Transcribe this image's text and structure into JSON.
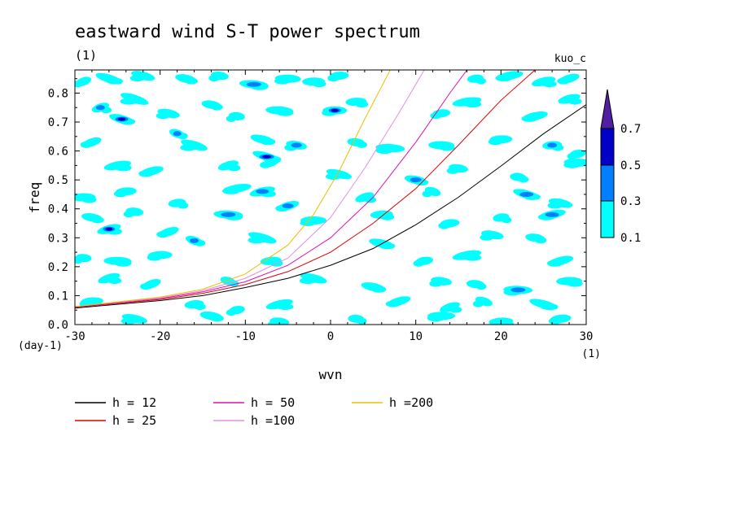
{
  "chart_data": {
    "type": "heatmap",
    "title": "eastward wind S-T power spectrum",
    "subtitle_left": "(1)",
    "subtitle_right": "kuo_c",
    "xlabel": "wvn",
    "ylabel": "freq",
    "x_unit": "(1)",
    "y_unit": "(day-1)",
    "xlim": [
      -30,
      30
    ],
    "ylim": [
      0,
      0.88
    ],
    "x_ticks": [
      -30,
      -20,
      -10,
      0,
      10,
      20,
      30
    ],
    "x_tick_labels": [
      "-30",
      "-20",
      "-10",
      "0",
      "10",
      "20",
      "30"
    ],
    "y_ticks": [
      0,
      0.1,
      0.2,
      0.3,
      0.4,
      0.5,
      0.6,
      0.7,
      0.8
    ],
    "y_tick_labels": [
      "0.0",
      "0.1",
      "0.2",
      "0.3",
      "0.4",
      "0.5",
      "0.6",
      "0.7",
      "0.8"
    ],
    "colorbar": {
      "levels": [
        0.1,
        0.3,
        0.5,
        0.7
      ],
      "labels": [
        "0.1",
        "0.3",
        "0.5",
        "0.7"
      ],
      "colors": [
        "#00ffff",
        "#0080ff",
        "#0000c8",
        "#5020a0"
      ]
    },
    "patches": [
      {
        "x": -29,
        "y": 0.84,
        "level": 0
      },
      {
        "x": -26,
        "y": 0.85,
        "level": 0
      },
      {
        "x": -22,
        "y": 0.86,
        "level": 0
      },
      {
        "x": -17,
        "y": 0.85,
        "level": 0
      },
      {
        "x": -13,
        "y": 0.86,
        "level": 0
      },
      {
        "x": -9,
        "y": 0.83,
        "level": 1
      },
      {
        "x": -5,
        "y": 0.85,
        "level": 0
      },
      {
        "x": -2,
        "y": 0.84,
        "level": 0
      },
      {
        "x": 1,
        "y": 0.86,
        "level": 0
      },
      {
        "x": 17,
        "y": 0.85,
        "level": 0
      },
      {
        "x": 21,
        "y": 0.86,
        "level": 0
      },
      {
        "x": 25,
        "y": 0.84,
        "level": 0
      },
      {
        "x": 28,
        "y": 0.85,
        "level": 0
      },
      {
        "x": -27,
        "y": 0.75,
        "level": 1
      },
      {
        "x": -23,
        "y": 0.78,
        "level": 0
      },
      {
        "x": -24.5,
        "y": 0.71,
        "level": 2
      },
      {
        "x": -19,
        "y": 0.73,
        "level": 0
      },
      {
        "x": -14,
        "y": 0.76,
        "level": 0
      },
      {
        "x": -11,
        "y": 0.72,
        "level": 0
      },
      {
        "x": -6,
        "y": 0.74,
        "level": 0
      },
      {
        "x": 0.5,
        "y": 0.74,
        "level": 2
      },
      {
        "x": 3,
        "y": 0.77,
        "level": 0
      },
      {
        "x": 13,
        "y": 0.73,
        "level": 0
      },
      {
        "x": 16,
        "y": 0.77,
        "level": 0
      },
      {
        "x": 24,
        "y": 0.72,
        "level": 0
      },
      {
        "x": 28,
        "y": 0.78,
        "level": 0
      },
      {
        "x": -28,
        "y": 0.63,
        "level": 0
      },
      {
        "x": -18,
        "y": 0.66,
        "level": 1
      },
      {
        "x": -16,
        "y": 0.62,
        "level": 0
      },
      {
        "x": -8,
        "y": 0.64,
        "level": 0
      },
      {
        "x": -4,
        "y": 0.62,
        "level": 1
      },
      {
        "x": 3,
        "y": 0.63,
        "level": 0
      },
      {
        "x": 7,
        "y": 0.61,
        "level": 0
      },
      {
        "x": 13,
        "y": 0.62,
        "level": 0
      },
      {
        "x": 20,
        "y": 0.64,
        "level": 0
      },
      {
        "x": 26,
        "y": 0.62,
        "level": 1
      },
      {
        "x": 29,
        "y": 0.59,
        "level": 0
      },
      {
        "x": -25,
        "y": 0.55,
        "level": 0
      },
      {
        "x": -21,
        "y": 0.53,
        "level": 0
      },
      {
        "x": -12,
        "y": 0.55,
        "level": 0
      },
      {
        "x": -7,
        "y": 0.56,
        "level": 0
      },
      {
        "x": -7.5,
        "y": 0.58,
        "level": 2
      },
      {
        "x": 1,
        "y": 0.52,
        "level": 0
      },
      {
        "x": 10,
        "y": 0.5,
        "level": 1
      },
      {
        "x": 15,
        "y": 0.54,
        "level": 0
      },
      {
        "x": 22,
        "y": 0.51,
        "level": 0
      },
      {
        "x": 29,
        "y": 0.56,
        "level": 0
      },
      {
        "x": -29,
        "y": 0.44,
        "level": 0
      },
      {
        "x": -24,
        "y": 0.46,
        "level": 0
      },
      {
        "x": -18,
        "y": 0.42,
        "level": 0
      },
      {
        "x": -11,
        "y": 0.47,
        "level": 0
      },
      {
        "x": -8,
        "y": 0.46,
        "level": 1
      },
      {
        "x": -5,
        "y": 0.41,
        "level": 1
      },
      {
        "x": 4,
        "y": 0.44,
        "level": 0
      },
      {
        "x": 12,
        "y": 0.46,
        "level": 0
      },
      {
        "x": 23,
        "y": 0.45,
        "level": 1
      },
      {
        "x": 27,
        "y": 0.42,
        "level": 0
      },
      {
        "x": -28,
        "y": 0.37,
        "level": 0
      },
      {
        "x": -23,
        "y": 0.39,
        "level": 0
      },
      {
        "x": -12,
        "y": 0.38,
        "level": 1
      },
      {
        "x": -2,
        "y": 0.36,
        "level": 0
      },
      {
        "x": 6,
        "y": 0.38,
        "level": 0
      },
      {
        "x": 14,
        "y": 0.35,
        "level": 0
      },
      {
        "x": 20,
        "y": 0.37,
        "level": 0
      },
      {
        "x": 26,
        "y": 0.38,
        "level": 1
      },
      {
        "x": -26,
        "y": 0.33,
        "level": 2
      },
      {
        "x": -19,
        "y": 0.32,
        "level": 0
      },
      {
        "x": -16,
        "y": 0.29,
        "level": 1
      },
      {
        "x": -8,
        "y": 0.3,
        "level": 0
      },
      {
        "x": 6,
        "y": 0.28,
        "level": 0
      },
      {
        "x": 19,
        "y": 0.31,
        "level": 0
      },
      {
        "x": 24,
        "y": 0.3,
        "level": 0
      },
      {
        "x": -29,
        "y": 0.23,
        "level": 0
      },
      {
        "x": -25,
        "y": 0.22,
        "level": 0
      },
      {
        "x": -20,
        "y": 0.24,
        "level": 0
      },
      {
        "x": -7,
        "y": 0.22,
        "level": 0
      },
      {
        "x": 11,
        "y": 0.22,
        "level": 0
      },
      {
        "x": 16,
        "y": 0.24,
        "level": 0
      },
      {
        "x": 27,
        "y": 0.22,
        "level": 0
      },
      {
        "x": -26,
        "y": 0.16,
        "level": 0
      },
      {
        "x": -21,
        "y": 0.14,
        "level": 0
      },
      {
        "x": -12,
        "y": 0.15,
        "level": 0
      },
      {
        "x": -2,
        "y": 0.16,
        "level": 0
      },
      {
        "x": 5,
        "y": 0.13,
        "level": 0
      },
      {
        "x": 13,
        "y": 0.15,
        "level": 0
      },
      {
        "x": 17,
        "y": 0.14,
        "level": 0
      },
      {
        "x": 22,
        "y": 0.12,
        "level": 1
      },
      {
        "x": 28,
        "y": 0.15,
        "level": 0
      },
      {
        "x": -28,
        "y": 0.08,
        "level": 0
      },
      {
        "x": -16,
        "y": 0.07,
        "level": 0
      },
      {
        "x": -11,
        "y": 0.05,
        "level": 0
      },
      {
        "x": -6,
        "y": 0.07,
        "level": 0
      },
      {
        "x": 8,
        "y": 0.08,
        "level": 0
      },
      {
        "x": 14,
        "y": 0.06,
        "level": 0
      },
      {
        "x": 18,
        "y": 0.08,
        "level": 0
      },
      {
        "x": 25,
        "y": 0.07,
        "level": 0
      },
      {
        "x": -23,
        "y": 0.02,
        "level": 0
      },
      {
        "x": -14,
        "y": 0.03,
        "level": 0
      },
      {
        "x": -6,
        "y": 0.01,
        "level": 0
      },
      {
        "x": 3,
        "y": 0.02,
        "level": 0
      },
      {
        "x": 13,
        "y": 0.03,
        "level": 0
      },
      {
        "x": 20,
        "y": 0.01,
        "level": 0
      },
      {
        "x": 27,
        "y": 0.02,
        "level": 0
      }
    ],
    "series": [
      {
        "name": "h = 12",
        "color": "#000000",
        "x": [
          -30,
          -20,
          -15,
          -10,
          -5,
          0,
          5,
          10,
          15,
          20,
          25,
          30
        ],
        "y": [
          0.057,
          0.083,
          0.1,
          0.128,
          0.16,
          0.205,
          0.263,
          0.345,
          0.44,
          0.548,
          0.66,
          0.76
        ]
      },
      {
        "name": "h = 25",
        "color": "#e00000",
        "x": [
          -30,
          -20,
          -15,
          -10,
          -5,
          0,
          5,
          10,
          15,
          20,
          24
        ],
        "y": [
          0.06,
          0.087,
          0.108,
          0.138,
          0.183,
          0.25,
          0.35,
          0.47,
          0.62,
          0.775,
          0.88
        ]
      },
      {
        "name": "h = 50",
        "color": "#e010b0",
        "x": [
          -30,
          -20,
          -15,
          -10,
          -5,
          0,
          5,
          10,
          14,
          16
        ],
        "y": [
          0.061,
          0.09,
          0.113,
          0.148,
          0.205,
          0.3,
          0.44,
          0.63,
          0.8,
          0.88
        ]
      },
      {
        "name": "h =100",
        "color": "#e090e0",
        "x": [
          -30,
          -20,
          -15,
          -10,
          -5,
          0,
          4,
          8,
          11
        ],
        "y": [
          0.062,
          0.092,
          0.117,
          0.16,
          0.23,
          0.37,
          0.54,
          0.73,
          0.88
        ]
      },
      {
        "name": "h =200",
        "color": "#e8c000",
        "x": [
          -30,
          -20,
          -15,
          -10,
          -5,
          -2,
          1,
          4,
          7
        ],
        "y": [
          0.062,
          0.095,
          0.122,
          0.175,
          0.275,
          0.38,
          0.53,
          0.71,
          0.88
        ]
      }
    ]
  }
}
